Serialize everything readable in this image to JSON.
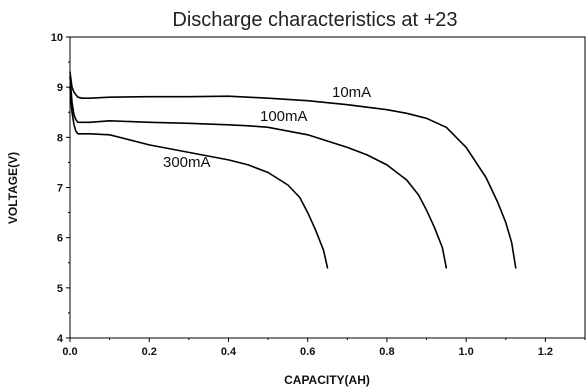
{
  "chart_data": {
    "type": "line",
    "title": "Discharge characteristics at +23",
    "xlabel": "CAPACITY(AH)",
    "ylabel": "VOLTAGE(V)",
    "xlim": [
      0.0,
      1.3
    ],
    "ylim": [
      4,
      10
    ],
    "xticks": [
      "0.0",
      "0.2",
      "0.4",
      "0.6",
      "0.8",
      "1.0",
      "1.2"
    ],
    "yticks": [
      "4",
      "5",
      "6",
      "7",
      "8",
      "9",
      "10"
    ],
    "grid": false,
    "line_color": "#000000",
    "series": [
      {
        "name": "10mA",
        "x": [
          0.0,
          0.005,
          0.01,
          0.015,
          0.02,
          0.03,
          0.05,
          0.1,
          0.2,
          0.3,
          0.4,
          0.45,
          0.5,
          0.6,
          0.7,
          0.75,
          0.8,
          0.85,
          0.9,
          0.95,
          1.0,
          1.05,
          1.08,
          1.1,
          1.115,
          1.125
        ],
        "y": [
          9.3,
          9.0,
          8.9,
          8.85,
          8.8,
          8.78,
          8.78,
          8.8,
          8.81,
          8.81,
          8.82,
          8.8,
          8.78,
          8.73,
          8.65,
          8.6,
          8.55,
          8.48,
          8.38,
          8.2,
          7.8,
          7.2,
          6.7,
          6.3,
          5.9,
          5.4
        ]
      },
      {
        "name": "100mA",
        "x": [
          0.0,
          0.005,
          0.01,
          0.015,
          0.02,
          0.03,
          0.05,
          0.1,
          0.2,
          0.3,
          0.4,
          0.45,
          0.5,
          0.6,
          0.7,
          0.75,
          0.8,
          0.85,
          0.88,
          0.9,
          0.92,
          0.94,
          0.95
        ],
        "y": [
          9.2,
          8.7,
          8.45,
          8.35,
          8.3,
          8.3,
          8.3,
          8.33,
          8.3,
          8.28,
          8.25,
          8.23,
          8.2,
          8.05,
          7.8,
          7.65,
          7.45,
          7.15,
          6.85,
          6.55,
          6.2,
          5.8,
          5.4
        ]
      },
      {
        "name": "300mA",
        "x": [
          0.0,
          0.005,
          0.01,
          0.015,
          0.02,
          0.03,
          0.05,
          0.1,
          0.15,
          0.2,
          0.3,
          0.4,
          0.45,
          0.5,
          0.55,
          0.58,
          0.6,
          0.62,
          0.64,
          0.65
        ],
        "y": [
          9.0,
          8.5,
          8.25,
          8.12,
          8.07,
          8.07,
          8.07,
          8.05,
          7.95,
          7.85,
          7.7,
          7.55,
          7.45,
          7.3,
          7.05,
          6.8,
          6.5,
          6.15,
          5.75,
          5.4
        ]
      }
    ]
  }
}
